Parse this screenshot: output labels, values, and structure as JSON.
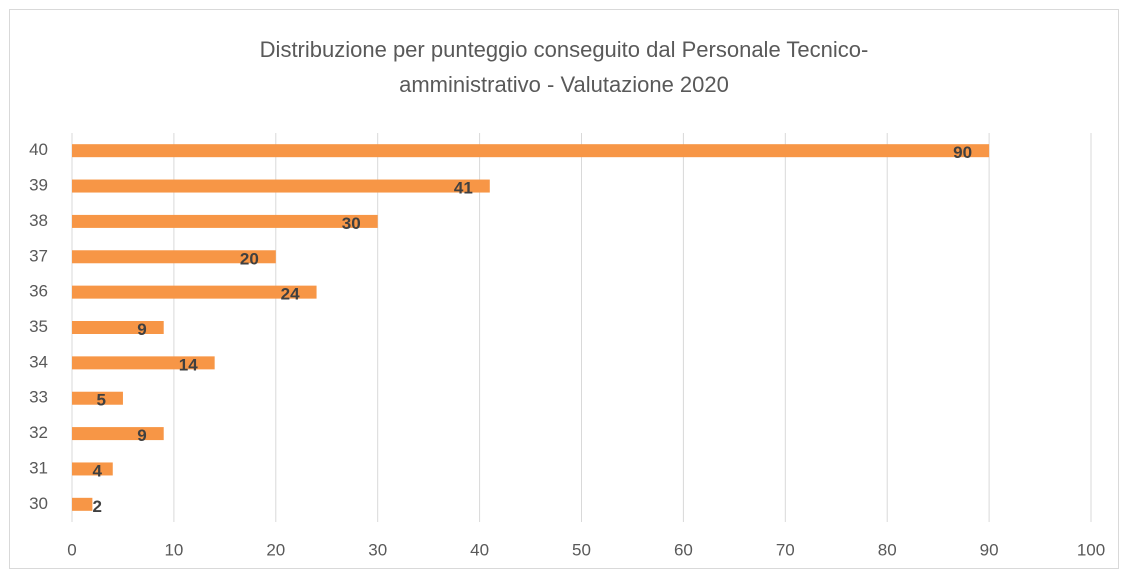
{
  "chart_data": {
    "type": "bar",
    "orientation": "horizontal",
    "title": [
      "Distribuzione per punteggio conseguito dal Personale Tecnico-",
      "amministrativo - Valutazione 2020"
    ],
    "categories": [
      "40",
      "39",
      "38",
      "37",
      "36",
      "35",
      "34",
      "33",
      "32",
      "31",
      "30"
    ],
    "values": [
      90,
      41,
      30,
      20,
      24,
      9,
      14,
      5,
      9,
      4,
      2
    ],
    "color": "#f79646",
    "xlim": [
      0,
      100
    ],
    "xticks": [
      0,
      10,
      20,
      30,
      40,
      50,
      60,
      70,
      80,
      90,
      100
    ],
    "grid": true
  }
}
